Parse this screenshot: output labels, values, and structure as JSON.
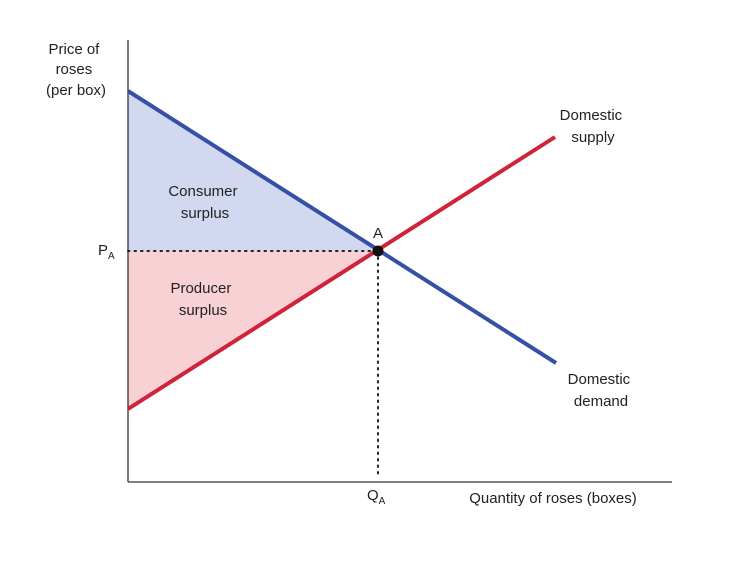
{
  "diagram": {
    "y_axis_label": [
      "Price of",
      "roses",
      "(per box)"
    ],
    "x_axis_label": "Quantity of roses (boxes)",
    "price_tick": {
      "main": "P",
      "sub": "A"
    },
    "quantity_tick": {
      "main": "Q",
      "sub": "A"
    },
    "point_label": "A",
    "consumer_surplus_label": [
      "Consumer",
      "surplus"
    ],
    "producer_surplus_label": [
      "Producer",
      "surplus"
    ],
    "supply_label": [
      "Domestic",
      "supply"
    ],
    "demand_label": [
      "Domestic",
      "demand"
    ]
  },
  "colors": {
    "supply": "#d0233a",
    "demand": "#3551a5",
    "consumer_fill": "#d3d8f1",
    "producer_fill": "#f7d1d3",
    "axis": "#333333",
    "point": "#111111"
  }
}
